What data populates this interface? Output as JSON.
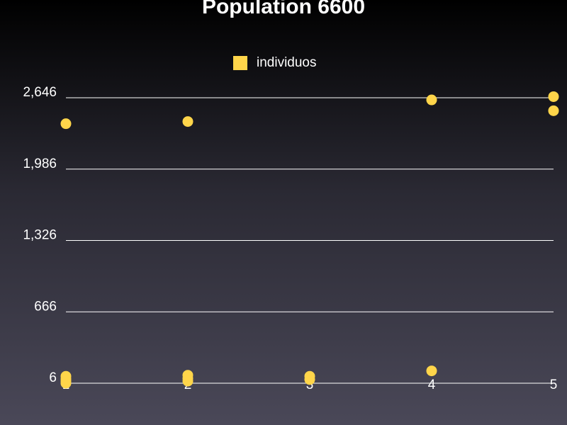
{
  "chart_data": {
    "type": "scatter",
    "title": "Population 6600",
    "xlabel": "",
    "ylabel": "",
    "xlim": [
      1,
      5
    ],
    "ylim": [
      6,
      2646
    ],
    "x_ticks": [
      "1",
      "2",
      "3",
      "4",
      "5"
    ],
    "y_ticks": [
      "6",
      "666",
      "1,326",
      "1,986",
      "2,646"
    ],
    "grid": true,
    "legend": "top-center",
    "series": [
      {
        "name": "individuos",
        "color": "#ffd54a",
        "points": [
          {
            "x": 1,
            "y": 2406
          },
          {
            "x": 1,
            "y": 70
          },
          {
            "x": 1,
            "y": 45
          },
          {
            "x": 1,
            "y": 25
          },
          {
            "x": 1,
            "y": 6
          },
          {
            "x": 2,
            "y": 2426
          },
          {
            "x": 2,
            "y": 80
          },
          {
            "x": 2,
            "y": 50
          },
          {
            "x": 2,
            "y": 25
          },
          {
            "x": 3,
            "y": 70
          },
          {
            "x": 3,
            "y": 40
          },
          {
            "x": 4,
            "y": 2626
          },
          {
            "x": 4,
            "y": 120
          },
          {
            "x": 5,
            "y": 2656
          },
          {
            "x": 5,
            "y": 2526
          }
        ]
      }
    ]
  }
}
